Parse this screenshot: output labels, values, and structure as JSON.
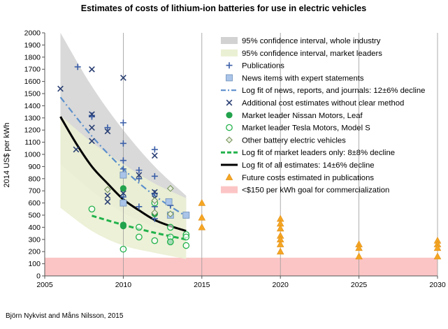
{
  "chart_data": {
    "type": "scatter",
    "title": "Estimates of costs of lithium-ion batteries for use in electric vehicles",
    "ylabel": "2014 US$ per kWh",
    "xlabel": "",
    "source": "Björn Nykvist and Måns Nilsson, 2015",
    "xlim": [
      2005,
      2030
    ],
    "ylim": [
      0,
      2000
    ],
    "x_ticks": [
      2005,
      2010,
      2015,
      2020,
      2025,
      2030
    ],
    "y_ticks": [
      0,
      100,
      200,
      300,
      400,
      500,
      600,
      700,
      800,
      900,
      1000,
      1100,
      1200,
      1300,
      1400,
      1500,
      1600,
      1700,
      1800,
      1900,
      2000
    ],
    "grid": "vertical",
    "legend_position": "top-right",
    "goal_band": {
      "name": "<$150 per kWh goal for commercialization",
      "y": [
        0,
        150
      ],
      "x": [
        2005,
        2030
      ],
      "color": "#fcc5c5"
    },
    "bands": [
      {
        "name": "95% confidence interval, whole industry",
        "color": "#d2d2d2",
        "x": [
          2006,
          2008,
          2010,
          2012,
          2014
        ],
        "upper": [
          2000,
          1560,
          1200,
          900,
          660
        ],
        "lower": [
          920,
          700,
          520,
          400,
          300
        ]
      },
      {
        "name": "95% confidence interval, market leaders",
        "color": "#eaf0d3",
        "x": [
          2006,
          2008,
          2010,
          2012,
          2014
        ],
        "upper": [
          1320,
          1100,
          920,
          760,
          640
        ],
        "lower": [
          560,
          370,
          250,
          190,
          140
        ]
      }
    ],
    "lines": [
      {
        "name": "Log fit of news, reports, and journals: 12±6% decline",
        "color": "#5b8fcc",
        "style": "dashdot",
        "x": [
          2006,
          2008,
          2010,
          2012,
          2014
        ],
        "y": [
          1470,
          1150,
          880,
          660,
          490
        ]
      },
      {
        "name": "Log fit of market leaders only: 8±8% decline",
        "color": "#22b24c",
        "style": "dash",
        "x": [
          2008,
          2010,
          2012,
          2014
        ],
        "y": [
          495,
          420,
          355,
          300
        ]
      },
      {
        "name": "Log fit of all estimates: 14±6% decline",
        "color": "#000000",
        "style": "solid",
        "x": [
          2006,
          2007,
          2008,
          2009,
          2010,
          2011,
          2012,
          2013,
          2014
        ],
        "y": [
          1310,
          1090,
          900,
          760,
          630,
          540,
          460,
          410,
          370
        ]
      }
    ],
    "series": [
      {
        "name": "Publications",
        "marker": "plus",
        "color": "#3b5fa8",
        "points": [
          [
            2007.1,
            1720
          ],
          [
            2008,
            1320
          ],
          [
            2008,
            1310
          ],
          [
            2009,
            1220
          ],
          [
            2010,
            1260
          ],
          [
            2010,
            1090
          ],
          [
            2010,
            950
          ],
          [
            2010,
            880
          ],
          [
            2010,
            650
          ],
          [
            2011,
            870
          ],
          [
            2011,
            800
          ],
          [
            2011,
            570
          ],
          [
            2012,
            1040
          ],
          [
            2012,
            820
          ],
          [
            2012,
            680
          ],
          [
            2012,
            570
          ],
          [
            2012,
            470
          ],
          [
            2013,
            580
          ]
        ]
      },
      {
        "name": "News items with expert statements",
        "marker": "square",
        "color": "#a9c4e8",
        "points": [
          [
            2010,
            830
          ],
          [
            2010,
            600
          ],
          [
            2012.9,
            610
          ],
          [
            2013,
            500
          ],
          [
            2014,
            500
          ]
        ]
      },
      {
        "name": "Additional cost estimates without clear method",
        "marker": "x",
        "color": "#2a3f73",
        "points": [
          [
            2006,
            1540
          ],
          [
            2007,
            1040
          ],
          [
            2008,
            1700
          ],
          [
            2008,
            1330
          ],
          [
            2008,
            1220
          ],
          [
            2008,
            1110
          ],
          [
            2009,
            1190
          ],
          [
            2009,
            660
          ],
          [
            2009,
            610
          ],
          [
            2010,
            1630
          ],
          [
            2010,
            680
          ],
          [
            2011,
            830
          ],
          [
            2012,
            990
          ],
          [
            2012,
            690
          ],
          [
            2012,
            640
          ]
        ]
      },
      {
        "name": "Market leader Nissan Motors, Leaf",
        "marker": "dot",
        "color": "#22a24c",
        "points": [
          [
            2010,
            720
          ],
          [
            2010,
            420
          ],
          [
            2010,
            410
          ],
          [
            2012,
            510
          ],
          [
            2013,
            280
          ]
        ]
      },
      {
        "name": "Market leader Tesla Motors, Model S",
        "marker": "circle",
        "color": "#22b24c",
        "points": [
          [
            2008,
            550
          ],
          [
            2010,
            220
          ],
          [
            2011,
            400
          ],
          [
            2011,
            320
          ],
          [
            2012,
            600
          ],
          [
            2012,
            290
          ],
          [
            2013,
            400
          ],
          [
            2013,
            320
          ],
          [
            2013,
            280
          ],
          [
            2014,
            340
          ],
          [
            2014,
            320
          ],
          [
            2014,
            250
          ]
        ]
      },
      {
        "name": "Other battery electric vehicles",
        "marker": "diamond",
        "color": "#6f8f53",
        "points": [
          [
            2009,
            710
          ],
          [
            2012,
            620
          ],
          [
            2012,
            520
          ],
          [
            2013,
            720
          ],
          [
            2013,
            510
          ]
        ]
      },
      {
        "name": "Future costs estimated in publications",
        "marker": "triangle",
        "color": "#f5a623",
        "points": [
          [
            2015,
            600
          ],
          [
            2015,
            480
          ],
          [
            2015,
            400
          ],
          [
            2020,
            470
          ],
          [
            2020,
            430
          ],
          [
            2020,
            390
          ],
          [
            2020,
            330
          ],
          [
            2020,
            300
          ],
          [
            2020,
            260
          ],
          [
            2020,
            200
          ],
          [
            2025,
            260
          ],
          [
            2025,
            230
          ],
          [
            2025,
            160
          ],
          [
            2030,
            290
          ],
          [
            2030,
            260
          ],
          [
            2030,
            230
          ],
          [
            2030,
            160
          ]
        ]
      }
    ],
    "legend": [
      {
        "label": "95% confidence interval, whole industry",
        "kind": "band",
        "color": "#d2d2d2"
      },
      {
        "label": "95% confidence interval, market leaders",
        "kind": "band",
        "color": "#eaf0d3"
      },
      {
        "label": "Publications",
        "kind": "plus",
        "color": "#3b5fa8"
      },
      {
        "label": "News items with expert statements",
        "kind": "square",
        "color": "#a9c4e8"
      },
      {
        "label": "Log fit of news, reports, and journals: 12±6% decline",
        "kind": "dashdot",
        "color": "#5b8fcc"
      },
      {
        "label": "Additional cost estimates without clear method",
        "kind": "x",
        "color": "#2a3f73"
      },
      {
        "label": "Market leader Nissan Motors, Leaf",
        "kind": "dot",
        "color": "#22a24c"
      },
      {
        "label": "Market leader Tesla Motors, Model S",
        "kind": "circle",
        "color": "#22b24c"
      },
      {
        "label": "Other battery electric vehicles",
        "kind": "diamond",
        "color": "#6f8f53"
      },
      {
        "label": "Log fit of market leaders only: 8±8% decline",
        "kind": "dash",
        "color": "#22b24c"
      },
      {
        "label": "Log fit of all estimates: 14±6% decline",
        "kind": "solid",
        "color": "#000000"
      },
      {
        "label": "Future costs estimated in publications",
        "kind": "triangle",
        "color": "#f5a623"
      },
      {
        "label": "<$150 per kWh goal for commercialization",
        "kind": "band",
        "color": "#fcc5c5"
      }
    ]
  }
}
